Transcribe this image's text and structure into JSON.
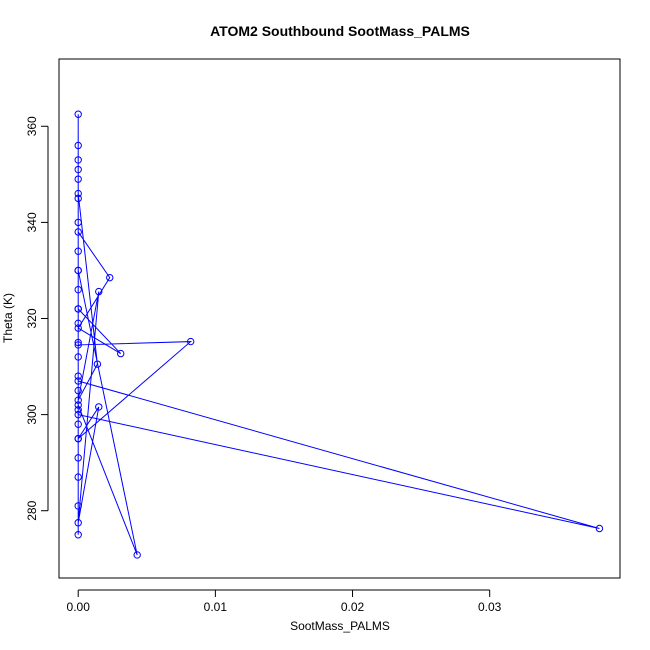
{
  "chart_data": {
    "type": "scatter",
    "title": "ATOM2 Southbound SootMass_PALMS",
    "xlabel": "SootMass_PALMS",
    "ylabel": "Theta (K)",
    "xlim": [
      -0.0014,
      0.0395
    ],
    "ylim": [
      266,
      374
    ],
    "x_ticks": [
      0.0,
      0.01,
      0.02,
      0.03
    ],
    "x_tick_labels": [
      "0.00",
      "0.01",
      "0.02",
      "0.03"
    ],
    "y_ticks": [
      280,
      300,
      320,
      340,
      360
    ],
    "y_tick_labels": [
      "280",
      "300",
      "320",
      "340",
      "360"
    ],
    "grid": false,
    "series": [
      {
        "color": "#0000ff",
        "mode": "lines+markers",
        "points": [
          [
            0.0,
            275
          ],
          [
            0.0,
            281
          ],
          [
            0.0,
            287
          ],
          [
            0.0,
            291
          ],
          [
            0.0,
            295
          ],
          [
            0.0,
            298
          ],
          [
            0.0,
            301
          ],
          [
            0.0,
            305
          ],
          [
            0.0,
            308
          ],
          [
            0.0,
            312
          ],
          [
            0.0,
            315
          ],
          [
            0.0,
            319
          ],
          [
            0.0,
            322
          ],
          [
            0.0,
            326
          ],
          [
            0.0,
            330
          ],
          [
            0.0,
            334
          ],
          [
            0.0,
            338
          ],
          [
            0.0023,
            328.5
          ],
          [
            0.0,
            318
          ],
          [
            0.0031,
            312.7
          ],
          [
            0.0,
            322
          ],
          [
            0.0,
            346
          ],
          [
            0.0014,
            310.5
          ],
          [
            0.0,
            303
          ],
          [
            0.0015,
            325.6
          ],
          [
            0.0,
            277.5
          ],
          [
            0.0015,
            301.6
          ],
          [
            0.0,
            295
          ],
          [
            0.0082,
            315.2
          ],
          [
            0.0,
            314.5
          ],
          [
            0.0,
            300
          ],
          [
            0.038,
            276.3
          ],
          [
            0.0,
            307
          ],
          [
            0.0,
            302
          ],
          [
            0.0043,
            270.8
          ],
          [
            0.0,
            330
          ],
          [
            0.0,
            340
          ],
          [
            0.0,
            345
          ],
          [
            0.0,
            349
          ],
          [
            0.0,
            351
          ],
          [
            0.0,
            353
          ],
          [
            0.0,
            356
          ],
          [
            0.0,
            362.5
          ]
        ]
      }
    ]
  }
}
